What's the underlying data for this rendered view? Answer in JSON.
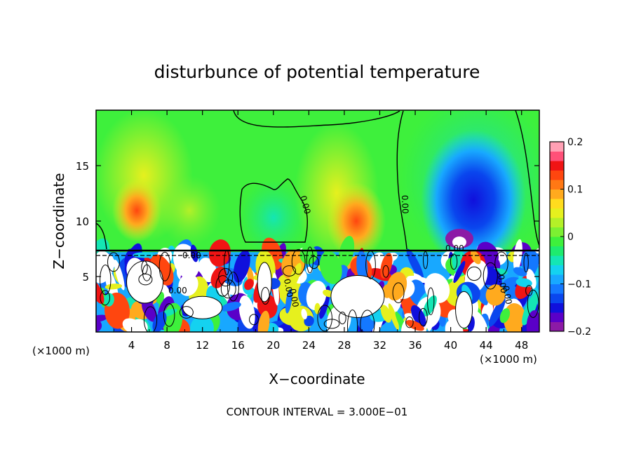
{
  "chart_data": {
    "type": "heatmap",
    "title": "disturbunce of potential temperature",
    "xlabel": "X−coordinate",
    "ylabel": "Z−coordinate",
    "x_unit_left": "(×1000 m)",
    "x_unit_right": "(×1000 m)",
    "xlim": [
      0,
      50
    ],
    "ylim": [
      0,
      20
    ],
    "x_ticks": [
      4,
      8,
      12,
      16,
      20,
      24,
      28,
      32,
      36,
      40,
      44,
      48
    ],
    "x_tick_labels": [
      "4",
      "8",
      "12",
      "16",
      "20",
      "24",
      "28",
      "32",
      "36",
      "40",
      "44",
      "48"
    ],
    "y_ticks": [
      5,
      10,
      15
    ],
    "y_tick_labels": [
      "5",
      "10",
      "15"
    ],
    "colorbar": {
      "min": -0.2,
      "max": 0.2,
      "ticks": [
        0.2,
        0.1,
        0,
        -0.1,
        -0.2
      ],
      "tick_labels": [
        "0.2",
        "0.1",
        "0",
        "−0.1",
        "−0.2"
      ],
      "colors": [
        "#8c1aa6",
        "#5a00c8",
        "#1010dc",
        "#0a46ee",
        "#1478ff",
        "#18a8ff",
        "#14d2f0",
        "#14e6b4",
        "#1eeb6e",
        "#3ef03c",
        "#7cf032",
        "#b4f028",
        "#e6f01e",
        "#ffdc1e",
        "#ffaa1e",
        "#ff7814",
        "#ff460f",
        "#f01414",
        "#ff5078",
        "#ffa0b4"
      ]
    },
    "contour_labels": [
      "0.00",
      "0.00",
      "0.00",
      "0.00",
      "0.00",
      "0.00",
      "0.00",
      "0.00",
      "0.00"
    ],
    "annotation": "CONTOUR INTERVAL = 3.000E−01",
    "grid": false
  }
}
